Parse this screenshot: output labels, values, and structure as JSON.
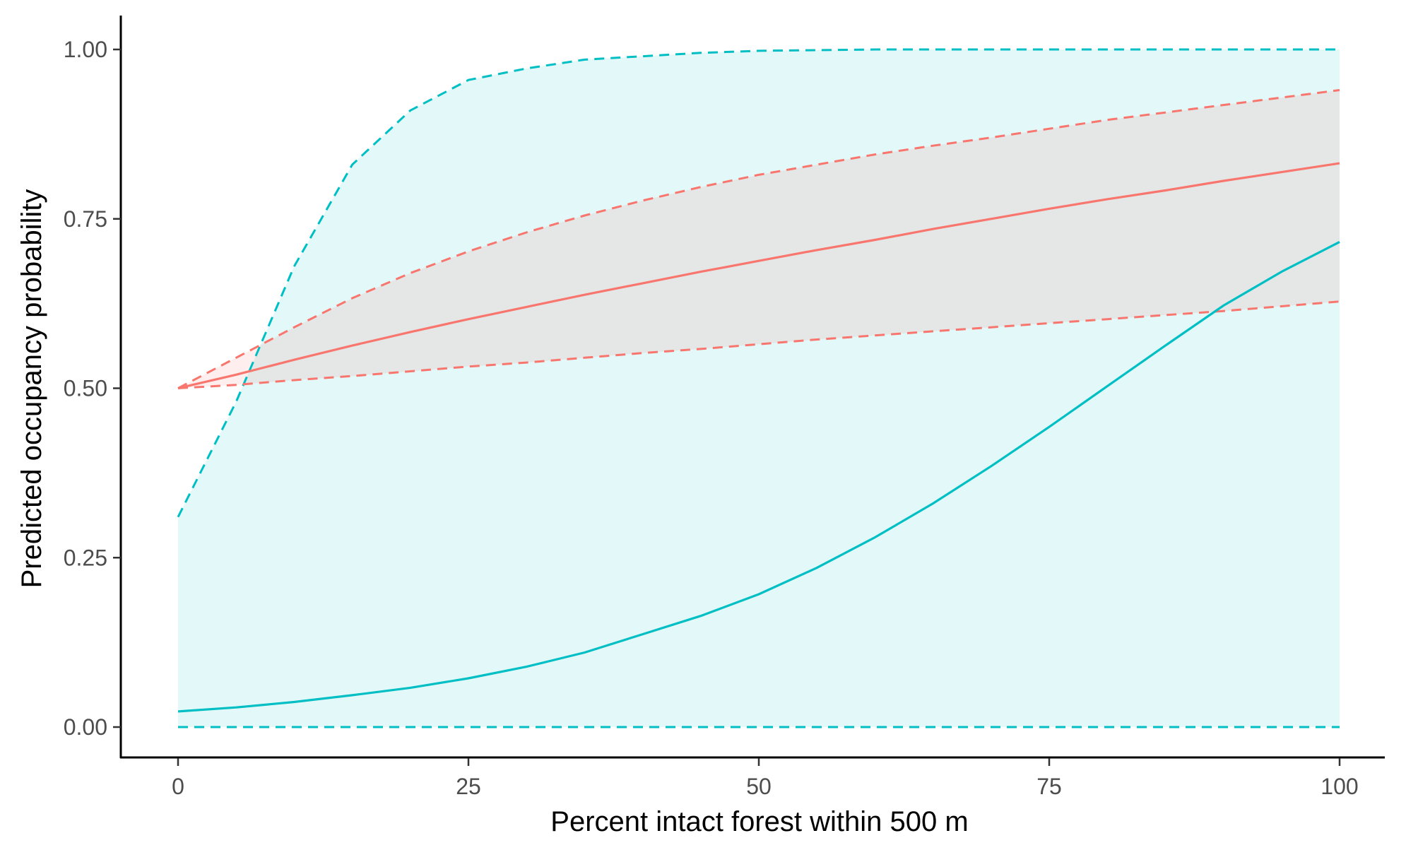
{
  "chart_data": {
    "type": "line",
    "title": "",
    "xlabel": "Percent intact forest within 500 m",
    "ylabel": "Predicted occupancy probability",
    "xlim": [
      -5,
      105
    ],
    "ylim": [
      -0.05,
      1.05
    ],
    "x_ticks": [
      0,
      25,
      50,
      75,
      100
    ],
    "x_tick_labels": [
      "0",
      "25",
      "50",
      "75",
      "100"
    ],
    "y_ticks": [
      0,
      0.25,
      0.5,
      0.75,
      1
    ],
    "y_tick_labels": [
      "0.00",
      "0.25",
      "0.50",
      "0.75",
      "1.00"
    ],
    "grid": false,
    "legend": "none",
    "x": [
      0,
      5,
      10,
      15,
      20,
      25,
      30,
      35,
      40,
      45,
      50,
      55,
      60,
      65,
      70,
      75,
      80,
      85,
      90,
      95,
      100
    ],
    "series": [
      {
        "color": "#F8766D",
        "fill": "#F8766D",
        "estimate": [
          0.5,
          0.52,
          0.542,
          0.563,
          0.583,
          0.602,
          0.62,
          0.638,
          0.655,
          0.672,
          0.688,
          0.704,
          0.719,
          0.735,
          0.75,
          0.765,
          0.779,
          0.792,
          0.806,
          0.819,
          0.832
        ],
        "lower": [
          0.5,
          0.505,
          0.512,
          0.518,
          0.525,
          0.532,
          0.538,
          0.545,
          0.552,
          0.558,
          0.565,
          0.572,
          0.578,
          0.584,
          0.59,
          0.596,
          0.602,
          0.608,
          0.614,
          0.621,
          0.628
        ],
        "upper": [
          0.5,
          0.545,
          0.59,
          0.633,
          0.67,
          0.702,
          0.73,
          0.755,
          0.777,
          0.797,
          0.815,
          0.83,
          0.845,
          0.858,
          0.87,
          0.883,
          0.896,
          0.907,
          0.918,
          0.929,
          0.94
        ]
      },
      {
        "color": "#00BFC4",
        "fill": "#00BFC4",
        "estimate": [
          0.023,
          0.029,
          0.037,
          0.047,
          0.058,
          0.072,
          0.089,
          0.11,
          0.137,
          0.164,
          0.196,
          0.235,
          0.28,
          0.33,
          0.385,
          0.443,
          0.503,
          0.563,
          0.622,
          0.672,
          0.716
        ],
        "lower": [
          0,
          0,
          0,
          0,
          0,
          0,
          0,
          0,
          0,
          0,
          0,
          0,
          0,
          0,
          0,
          0,
          0,
          0,
          0,
          0,
          0
        ],
        "upper": [
          0.31,
          0.48,
          0.68,
          0.83,
          0.91,
          0.955,
          0.972,
          0.985,
          0.99,
          0.995,
          0.998,
          0.999,
          1,
          1,
          1,
          1,
          1,
          1,
          1,
          1,
          1
        ]
      }
    ]
  }
}
